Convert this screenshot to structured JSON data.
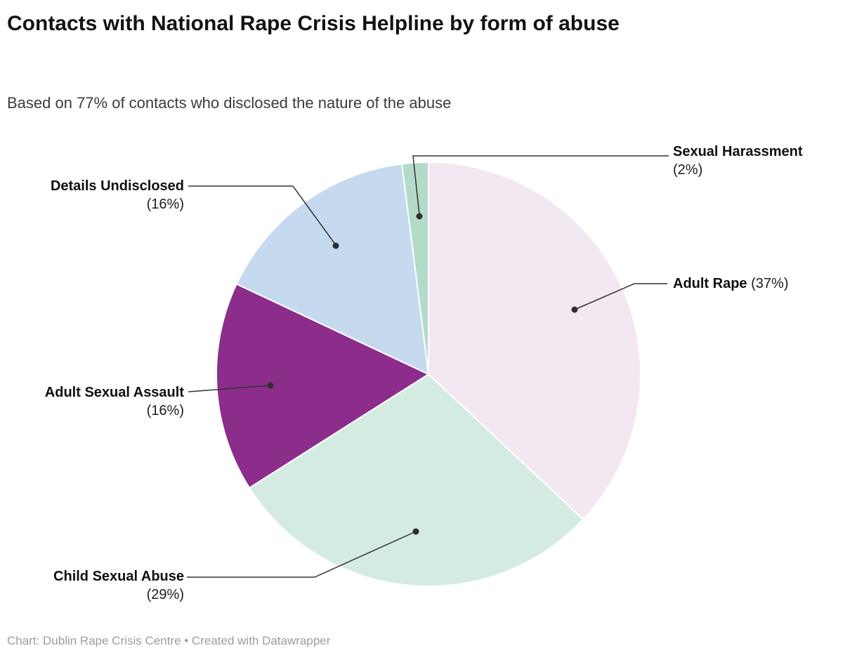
{
  "header": {
    "title": "Contacts with National Rape Crisis Helpline by form of abuse",
    "subtitle": "Based on 77% of contacts who disclosed the nature of the abuse"
  },
  "footer": {
    "text": "Chart: Dublin Rape Crisis Centre • Created with Datawrapper"
  },
  "chart_data": {
    "type": "pie",
    "title": "Contacts with National Rape Crisis Helpline by form of abuse",
    "subtitle": "Based on 77% of contacts who disclosed the nature of the abuse",
    "source": "Chart: Dublin Rape Crisis Centre • Created with Datawrapper",
    "direction": "clockwise",
    "start_angle_deg": 0,
    "legend_position": "callout-labels",
    "slices": [
      {
        "label": "Adult Rape",
        "pct_label": "(37%)",
        "value": 37,
        "color": "#f3e7f2"
      },
      {
        "label": "Child Sexual Abuse",
        "pct_label": "(29%)",
        "value": 29,
        "color": "#d4ebe2"
      },
      {
        "label": "Adult Sexual Assault",
        "pct_label": "(16%)",
        "value": 16,
        "color": "#8c2d8c"
      },
      {
        "label": "Details Undisclosed",
        "pct_label": "(16%)",
        "value": 16,
        "color": "#c5d9ef"
      },
      {
        "label": "Sexual Harassment",
        "pct_label": "(2%)",
        "value": 2,
        "color": "#b2dbc9"
      }
    ],
    "leader_line_color": "#333333",
    "dot_color": "#2e2e2e"
  }
}
